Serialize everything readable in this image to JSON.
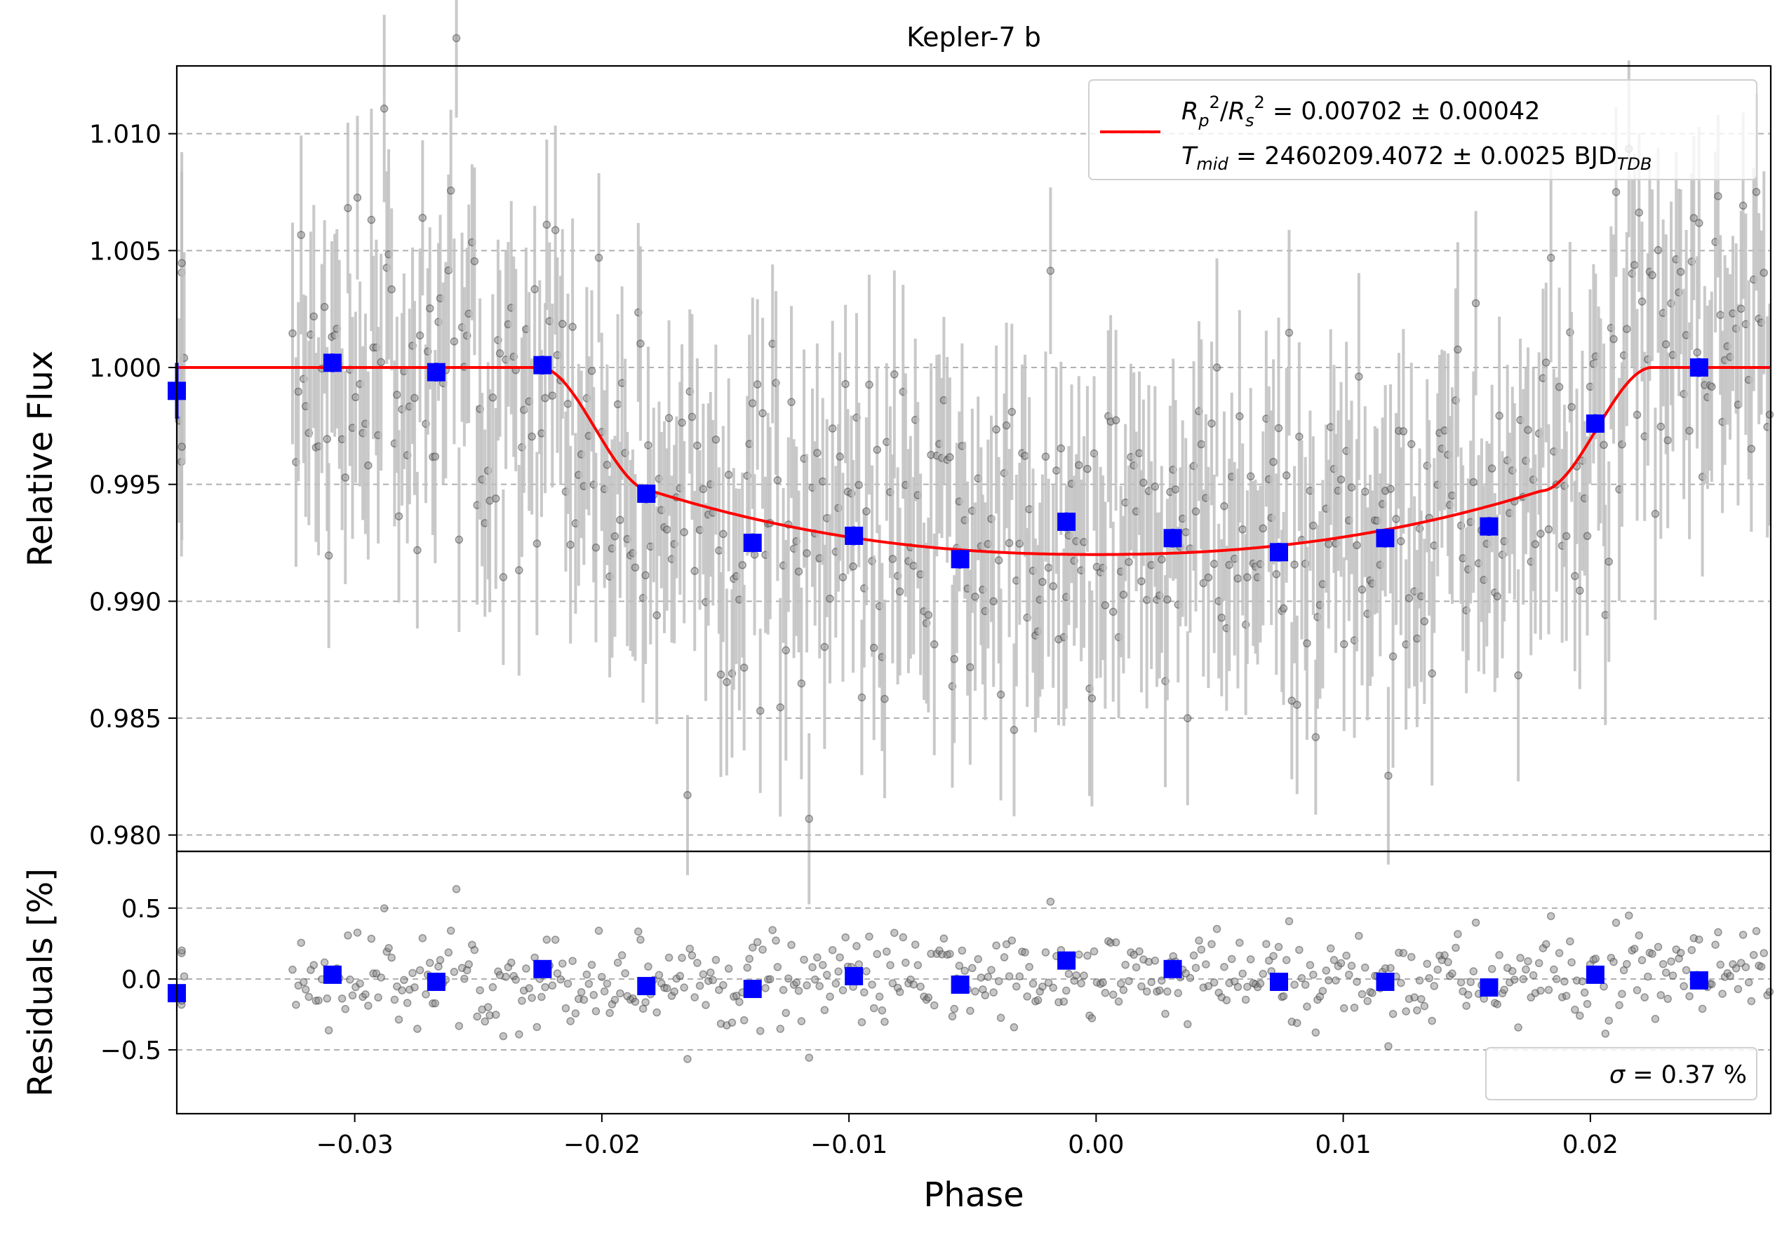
{
  "chart_data": [
    {
      "panel": "flux",
      "type": "scatter",
      "title": "Kepler-7 b",
      "xlabel": "",
      "ylabel": "Relative Flux",
      "xlim": [
        -0.0372,
        0.0273
      ],
      "ylim": [
        0.9793,
        1.0129
      ],
      "yticks": [
        "0.980",
        "0.985",
        "0.990",
        "0.995",
        "1.000",
        "1.005",
        "1.010"
      ],
      "grid": "horizontal dashed",
      "legend": {
        "placement": "top-right",
        "line1_math": "R_p^2/R_s^2 = 0.00702 ± 0.00042",
        "line1_value": "= 0.00702 ± 0.00042",
        "line2_math": "T_mid = 2460209.4072 ± 0.0025 BJD_TDB",
        "line2_value": "= 2460209.4072 ± 0.0025 BJD"
      },
      "raw_points_note": "dense cloud of ~600 grey points with vertical error bars (~±0.004), following the transit curve",
      "raw_point_color": "#808080",
      "errorbar_color": "#c0c0c0",
      "model": {
        "name": "transit model",
        "color": "#ff0000",
        "depth": 0.008,
        "ingress_start": -0.0225,
        "ingress_end": -0.018,
        "egress_start": 0.018,
        "egress_end": 0.0225
      },
      "binned": {
        "color": "#0000ff",
        "x": [
          -0.0372,
          -0.0309,
          -0.0267,
          -0.0224,
          -0.0182,
          -0.0139,
          -0.0098,
          -0.0055,
          -0.0012,
          0.0031,
          0.0074,
          0.0117,
          0.0159,
          0.0202,
          0.0244
        ],
        "y": [
          0.999,
          1.0002,
          0.9998,
          1.0001,
          0.9946,
          0.9925,
          0.9928,
          0.9918,
          0.9934,
          0.9927,
          0.9921,
          0.9927,
          0.9932,
          0.9976,
          1.0
        ],
        "yerr": [
          0.0012,
          0.0004,
          0.0004,
          0.0004,
          0.0004,
          0.0004,
          0.0004,
          0.0004,
          0.0004,
          0.0004,
          0.0004,
          0.0004,
          0.0004,
          0.0004,
          0.0004
        ]
      }
    },
    {
      "panel": "residuals",
      "type": "scatter",
      "xlabel": "Phase",
      "ylabel": "Residuals [%]",
      "xlim": [
        -0.0372,
        0.0273
      ],
      "ylim": [
        -0.95,
        0.9
      ],
      "xticks": [
        -0.03,
        -0.02,
        -0.01,
        0.0,
        0.01,
        0.02
      ],
      "xticklabels": [
        "−0.03",
        "−0.02",
        "−0.01",
        "0.00",
        "0.01",
        "0.02"
      ],
      "yticks": [
        -0.5,
        0.0,
        0.5
      ],
      "yticklabels": [
        "−0.5",
        "0.0",
        "0.5"
      ],
      "grid": "horizontal dashed",
      "sigma_label": "= 0.37 %",
      "sigma_placement": "bottom-right",
      "raw_point_color": "#808080",
      "binned": {
        "color": "#0000ff",
        "x": [
          -0.0372,
          -0.0309,
          -0.0267,
          -0.0224,
          -0.0182,
          -0.0139,
          -0.0098,
          -0.0055,
          -0.0012,
          0.0031,
          0.0074,
          0.0117,
          0.0159,
          0.0202,
          0.0244
        ],
        "y": [
          -0.1,
          0.03,
          -0.02,
          0.07,
          -0.05,
          -0.07,
          0.02,
          -0.04,
          0.13,
          0.07,
          -0.02,
          -0.02,
          -0.06,
          0.03,
          -0.01
        ]
      }
    }
  ]
}
